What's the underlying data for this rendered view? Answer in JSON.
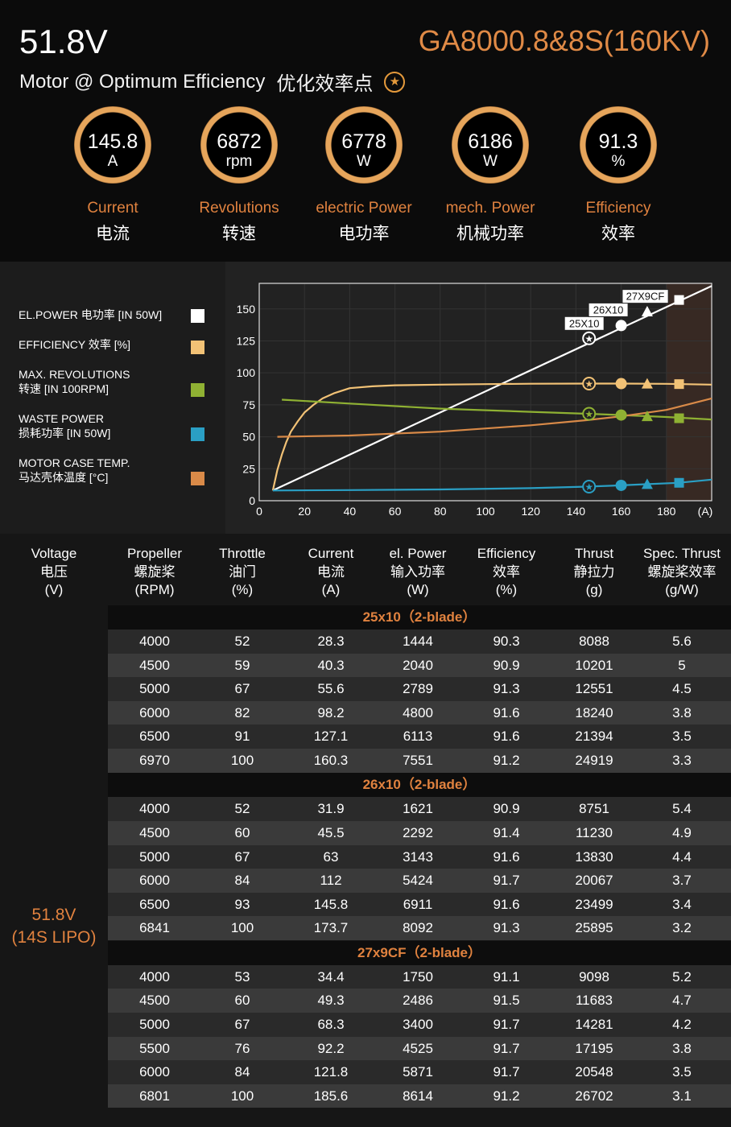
{
  "header": {
    "voltage": "51.8V",
    "model": "GA8000.8&8S(160KV)",
    "subtitle_en": "Motor @ Optimum Efficiency",
    "subtitle_zh": "优化效率点",
    "badge_icon": "star-icon"
  },
  "gauges": [
    {
      "value": "145.8",
      "unit": "A",
      "label_en": "Current",
      "label_zh": "电流"
    },
    {
      "value": "6872",
      "unit": "rpm",
      "label_en": "Revolutions",
      "label_zh": "转速"
    },
    {
      "value": "6778",
      "unit": "W",
      "label_en": "electric Power",
      "label_zh": "电功率"
    },
    {
      "value": "6186",
      "unit": "W",
      "label_en": "mech. Power",
      "label_zh": "机械功率"
    },
    {
      "value": "91.3",
      "unit": "%",
      "label_en": "Efficiency",
      "label_zh": "效率"
    }
  ],
  "legend": [
    {
      "line1": "EL.POWER 电功率 [IN 50W]",
      "line2": "",
      "color": "#ffffff"
    },
    {
      "line1": "EFFICIENCY 效率 [%]",
      "line2": "",
      "color": "#f2c276"
    },
    {
      "line1": "MAX. REVOLUTIONS",
      "line2": "转速 [IN 100RPM]",
      "color": "#8fb133"
    },
    {
      "line1": "WASTE POWER",
      "line2": "损耗功率 [IN 50W]",
      "color": "#2a9fc4"
    },
    {
      "line1": "MOTOR CASE TEMP.",
      "line2": "马达壳体温度 [°C]",
      "color": "#d98a48"
    }
  ],
  "chart_data": {
    "type": "line",
    "xlabel": "(A)",
    "xlim": [
      0,
      200
    ],
    "ylim": [
      0,
      170
    ],
    "x_ticks": [
      0,
      20,
      40,
      60,
      80,
      100,
      120,
      140,
      160,
      180
    ],
    "y_ticks": [
      0,
      25,
      50,
      75,
      100,
      125,
      150
    ],
    "shaded_region": [
      180,
      200
    ],
    "series": [
      {
        "name": "EL.POWER",
        "color": "#ffffff",
        "points": [
          [
            6,
            8
          ],
          [
            200,
            168
          ]
        ]
      },
      {
        "name": "EFFICIENCY",
        "color": "#f2c276",
        "points": [
          [
            6,
            8
          ],
          [
            8,
            24
          ],
          [
            10,
            36
          ],
          [
            12,
            46
          ],
          [
            14,
            54
          ],
          [
            17,
            62
          ],
          [
            20,
            69
          ],
          [
            24,
            75
          ],
          [
            28,
            80
          ],
          [
            33,
            84
          ],
          [
            40,
            88
          ],
          [
            50,
            89.5
          ],
          [
            60,
            90.3
          ],
          [
            80,
            90.8
          ],
          [
            100,
            91.2
          ],
          [
            120,
            91.5
          ],
          [
            145,
            91.6
          ],
          [
            160,
            91.6
          ],
          [
            180,
            91.4
          ],
          [
            200,
            90.8
          ]
        ]
      },
      {
        "name": "MAX. REVOLUTIONS",
        "color": "#8fb133",
        "points": [
          [
            10,
            79
          ],
          [
            40,
            76
          ],
          [
            80,
            72
          ],
          [
            120,
            69.5
          ],
          [
            145,
            68
          ],
          [
            160,
            67
          ],
          [
            180,
            65.5
          ],
          [
            200,
            63.5
          ]
        ]
      },
      {
        "name": "WASTE POWER",
        "color": "#2a9fc4",
        "points": [
          [
            6,
            8
          ],
          [
            40,
            8.3
          ],
          [
            80,
            8.8
          ],
          [
            120,
            9.8
          ],
          [
            145,
            11
          ],
          [
            160,
            12
          ],
          [
            172,
            13
          ],
          [
            185,
            14
          ],
          [
            200,
            16.5
          ]
        ]
      },
      {
        "name": "MOTOR CASE TEMP.",
        "color": "#d98a48",
        "points": [
          [
            8,
            50
          ],
          [
            40,
            51
          ],
          [
            80,
            54
          ],
          [
            120,
            59
          ],
          [
            145,
            63
          ],
          [
            160,
            66
          ],
          [
            180,
            71
          ],
          [
            200,
            80
          ]
        ]
      }
    ],
    "markers": [
      {
        "label": "25X10",
        "x": 145.8,
        "shape": "star-circle",
        "y_power": 127,
        "y_eff": 91.6,
        "y_rev": 68,
        "y_waste": 11
      },
      {
        "label": "26X10",
        "x": 160,
        "shape": "circle",
        "y_power": 137,
        "y_eff": 91.6,
        "y_rev": 67,
        "y_waste": 12
      },
      {
        "label": "",
        "x": 171.5,
        "shape": "triangle",
        "y_power": 148,
        "y_eff": 91.5,
        "y_rev": 66,
        "y_waste": 13
      },
      {
        "label": "27X9CF",
        "x": 185.6,
        "shape": "square",
        "y_power": 157,
        "y_eff": 91.2,
        "y_rev": 64.5,
        "y_waste": 14
      }
    ],
    "top_label": "27X9CF"
  },
  "table": {
    "headers": [
      {
        "en": "Voltage",
        "zh": "电压",
        "unit": "(V)"
      },
      {
        "en": "Propeller",
        "zh": "螺旋桨",
        "unit": "(RPM)"
      },
      {
        "en": "Throttle",
        "zh": "油门",
        "unit": "(%)"
      },
      {
        "en": "Current",
        "zh": "电流",
        "unit": "(A)"
      },
      {
        "en": "el. Power",
        "zh": "输入功率",
        "unit": "(W)"
      },
      {
        "en": "Efficiency",
        "zh": "效率",
        "unit": "(%)"
      },
      {
        "en": "Thrust",
        "zh": "静拉力",
        "unit": "(g)"
      },
      {
        "en": "Spec. Thrust",
        "zh": "螺旋桨效率",
        "unit": "(g/W)"
      }
    ],
    "voltage_line1": "51.8V",
    "voltage_line2": "(14S LIPO)",
    "groups": [
      {
        "title": "25x10（2-blade）",
        "rows": [
          [
            "4000",
            "52",
            "28.3",
            "1444",
            "90.3",
            "8088",
            "5.6"
          ],
          [
            "4500",
            "59",
            "40.3",
            "2040",
            "90.9",
            "10201",
            "5"
          ],
          [
            "5000",
            "67",
            "55.6",
            "2789",
            "91.3",
            "12551",
            "4.5"
          ],
          [
            "6000",
            "82",
            "98.2",
            "4800",
            "91.6",
            "18240",
            "3.8"
          ],
          [
            "6500",
            "91",
            "127.1",
            "6113",
            "91.6",
            "21394",
            "3.5"
          ],
          [
            "6970",
            "100",
            "160.3",
            "7551",
            "91.2",
            "24919",
            "3.3"
          ]
        ]
      },
      {
        "title": "26x10（2-blade）",
        "rows": [
          [
            "4000",
            "52",
            "31.9",
            "1621",
            "90.9",
            "8751",
            "5.4"
          ],
          [
            "4500",
            "60",
            "45.5",
            "2292",
            "91.4",
            "11230",
            "4.9"
          ],
          [
            "5000",
            "67",
            "63",
            "3143",
            "91.6",
            "13830",
            "4.4"
          ],
          [
            "6000",
            "84",
            "112",
            "5424",
            "91.7",
            "20067",
            "3.7"
          ],
          [
            "6500",
            "93",
            "145.8",
            "6911",
            "91.6",
            "23499",
            "3.4"
          ],
          [
            "6841",
            "100",
            "173.7",
            "8092",
            "91.3",
            "25895",
            "3.2"
          ]
        ]
      },
      {
        "title": "27x9CF（2-blade）",
        "rows": [
          [
            "4000",
            "53",
            "34.4",
            "1750",
            "91.1",
            "9098",
            "5.2"
          ],
          [
            "4500",
            "60",
            "49.3",
            "2486",
            "91.5",
            "11683",
            "4.7"
          ],
          [
            "5000",
            "67",
            "68.3",
            "3400",
            "91.7",
            "14281",
            "4.2"
          ],
          [
            "5500",
            "76",
            "92.2",
            "4525",
            "91.7",
            "17195",
            "3.8"
          ],
          [
            "6000",
            "84",
            "121.8",
            "5871",
            "91.7",
            "20548",
            "3.5"
          ],
          [
            "6801",
            "100",
            "185.6",
            "8614",
            "91.2",
            "26702",
            "3.1"
          ]
        ]
      }
    ]
  }
}
